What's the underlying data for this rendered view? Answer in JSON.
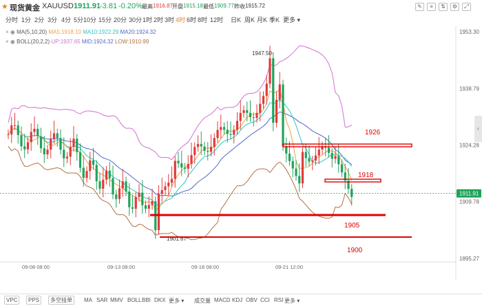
{
  "header": {
    "name": "现货黄金",
    "symbol": "XAUUSD",
    "last": "1911.91",
    "change": "-3.81",
    "change_pct": "-0.20%",
    "high_label": "最高",
    "high": "1916.87",
    "open_label": "开盘",
    "open": "1915.18",
    "low_label": "最低",
    "low": "1909.77",
    "prev_label": "昨收",
    "prev": "1915.72"
  },
  "timeframes": [
    "分时",
    "1分",
    "2分",
    "3分",
    "4分",
    "5分",
    "10分",
    "15分",
    "20分",
    "30分",
    "1时",
    "2时",
    "3时",
    "4时",
    "6时",
    "8时",
    "12时",
    "日K",
    "周K",
    "月K",
    "季K",
    "更多"
  ],
  "active_timeframe": "4时",
  "indicators": {
    "ma": {
      "name": "MA(5,10,20)",
      "ma5": "MA5:1918.10",
      "ma10": "MA10:1922.29",
      "ma20": "MA20:1924.32"
    },
    "boll": {
      "name": "BOLL(20,2,2)",
      "up": "UP:1937.65",
      "mid": "MID:1924.32",
      "low": "LOW:1910.99"
    }
  },
  "chart_data": {
    "type": "candlestick",
    "price_axis": [
      "1953.30",
      "1938.79",
      "1924.28",
      "1909.78",
      "1895.27"
    ],
    "current_price": "1911.91",
    "x_labels": [
      "09-08 08:00",
      "09-13 08:00",
      "09-18 08:00",
      "09-21 12:00"
    ],
    "annotations": {
      "peak": "1947.50",
      "trough": "1901.67"
    },
    "levels": [
      "1926",
      "1918",
      "1905",
      "1900"
    ],
    "colors": {
      "up": "#e03a3a",
      "down": "#1fa35a",
      "ma5": "#f0a040",
      "ma10": "#2ec4c4",
      "ma20": "#5066c8",
      "boll_up": "#d070d0",
      "boll_low": "#b07040",
      "level": "#e00000"
    }
  },
  "bottom": {
    "buttons": [
      "VPC",
      "PPS",
      "多空挂单"
    ],
    "main_indicators": [
      "MA",
      "SAR",
      "MMV",
      "BOLL",
      "BBI",
      "DKX",
      "更多"
    ],
    "sub_indicators": [
      "成交量",
      "MACD",
      "KDJ",
      "OBV",
      "CCI",
      "RSI",
      "更多"
    ]
  }
}
